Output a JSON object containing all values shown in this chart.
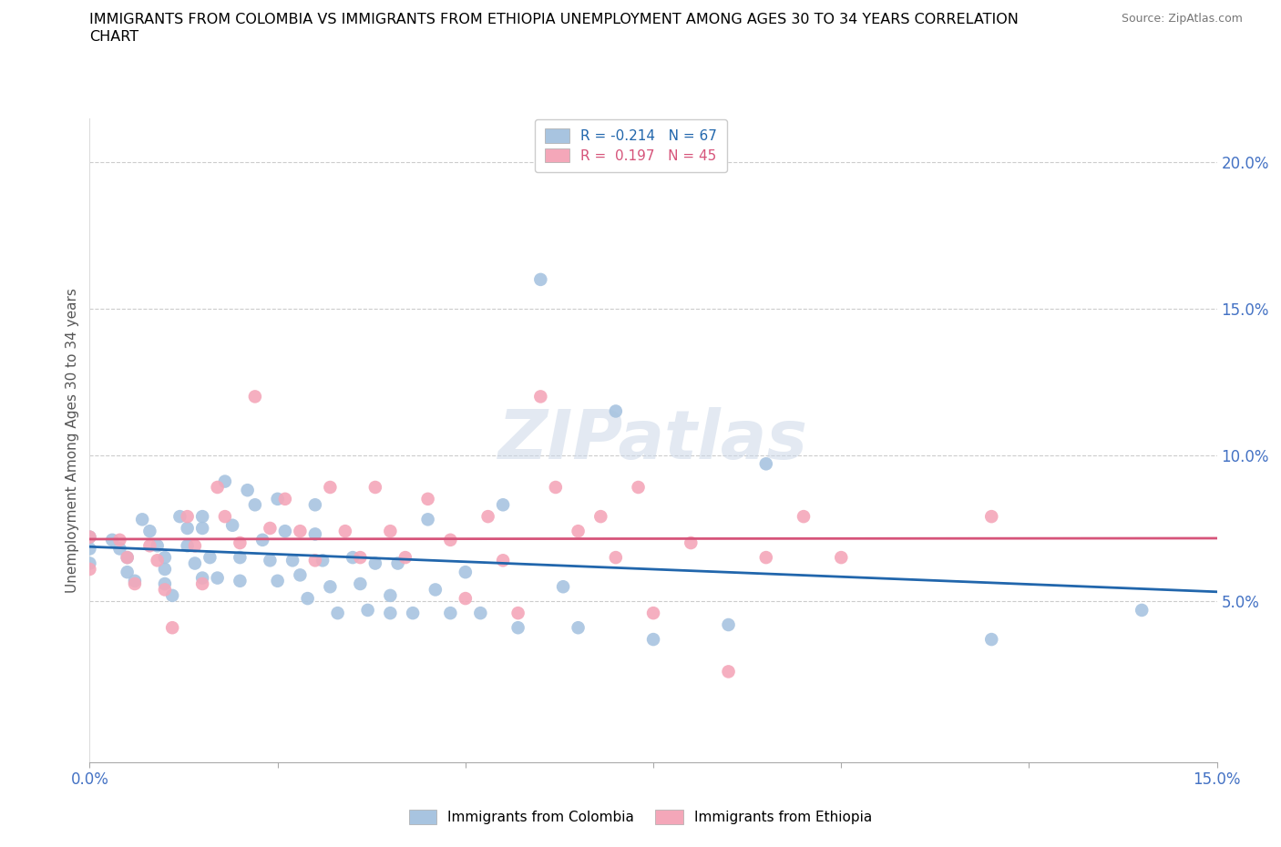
{
  "title_line1": "IMMIGRANTS FROM COLOMBIA VS IMMIGRANTS FROM ETHIOPIA UNEMPLOYMENT AMONG AGES 30 TO 34 YEARS CORRELATION",
  "title_line2": "CHART",
  "source": "Source: ZipAtlas.com",
  "ylabel": "Unemployment Among Ages 30 to 34 years",
  "xlim": [
    0.0,
    0.15
  ],
  "ylim": [
    -0.005,
    0.215
  ],
  "yticks": [
    0.05,
    0.1,
    0.15,
    0.2
  ],
  "xticks": [
    0.0,
    0.025,
    0.05,
    0.075,
    0.1,
    0.125,
    0.15
  ],
  "colombia_color": "#a8c4e0",
  "ethiopia_color": "#f4a7b9",
  "colombia_line_color": "#2166ac",
  "ethiopia_line_color": "#d6547a",
  "colombia_R": -0.214,
  "colombia_N": 67,
  "ethiopia_R": 0.197,
  "ethiopia_N": 45,
  "watermark": "ZIPatlas",
  "tick_color": "#4472c4",
  "label_color": "#555555",
  "grid_color": "#cccccc",
  "colombia_legend": "Immigrants from Colombia",
  "ethiopia_legend": "Immigrants from Ethiopia",
  "colombia_x": [
    0.0,
    0.0,
    0.0,
    0.003,
    0.004,
    0.005,
    0.005,
    0.006,
    0.007,
    0.008,
    0.009,
    0.01,
    0.01,
    0.01,
    0.011,
    0.012,
    0.013,
    0.013,
    0.014,
    0.015,
    0.015,
    0.015,
    0.016,
    0.017,
    0.018,
    0.019,
    0.02,
    0.02,
    0.021,
    0.022,
    0.023,
    0.024,
    0.025,
    0.025,
    0.026,
    0.027,
    0.028,
    0.029,
    0.03,
    0.03,
    0.031,
    0.032,
    0.033,
    0.035,
    0.036,
    0.037,
    0.038,
    0.04,
    0.04,
    0.041,
    0.043,
    0.045,
    0.046,
    0.048,
    0.05,
    0.052,
    0.055,
    0.057,
    0.06,
    0.063,
    0.065,
    0.07,
    0.075,
    0.085,
    0.09,
    0.12,
    0.14
  ],
  "colombia_y": [
    0.072,
    0.068,
    0.063,
    0.071,
    0.068,
    0.065,
    0.06,
    0.057,
    0.078,
    0.074,
    0.069,
    0.065,
    0.061,
    0.056,
    0.052,
    0.079,
    0.075,
    0.069,
    0.063,
    0.058,
    0.079,
    0.075,
    0.065,
    0.058,
    0.091,
    0.076,
    0.065,
    0.057,
    0.088,
    0.083,
    0.071,
    0.064,
    0.057,
    0.085,
    0.074,
    0.064,
    0.059,
    0.051,
    0.083,
    0.073,
    0.064,
    0.055,
    0.046,
    0.065,
    0.056,
    0.047,
    0.063,
    0.052,
    0.046,
    0.063,
    0.046,
    0.078,
    0.054,
    0.046,
    0.06,
    0.046,
    0.083,
    0.041,
    0.16,
    0.055,
    0.041,
    0.115,
    0.037,
    0.042,
    0.097,
    0.037,
    0.047
  ],
  "ethiopia_x": [
    0.0,
    0.0,
    0.004,
    0.005,
    0.006,
    0.008,
    0.009,
    0.01,
    0.011,
    0.013,
    0.014,
    0.015,
    0.017,
    0.018,
    0.02,
    0.022,
    0.024,
    0.026,
    0.028,
    0.03,
    0.032,
    0.034,
    0.036,
    0.038,
    0.04,
    0.042,
    0.045,
    0.048,
    0.05,
    0.053,
    0.055,
    0.057,
    0.06,
    0.062,
    0.065,
    0.068,
    0.07,
    0.073,
    0.075,
    0.08,
    0.085,
    0.09,
    0.095,
    0.1,
    0.12
  ],
  "ethiopia_y": [
    0.072,
    0.061,
    0.071,
    0.065,
    0.056,
    0.069,
    0.064,
    0.054,
    0.041,
    0.079,
    0.069,
    0.056,
    0.089,
    0.079,
    0.07,
    0.12,
    0.075,
    0.085,
    0.074,
    0.064,
    0.089,
    0.074,
    0.065,
    0.089,
    0.074,
    0.065,
    0.085,
    0.071,
    0.051,
    0.079,
    0.064,
    0.046,
    0.12,
    0.089,
    0.074,
    0.079,
    0.065,
    0.089,
    0.046,
    0.07,
    0.026,
    0.065,
    0.079,
    0.065,
    0.079
  ]
}
